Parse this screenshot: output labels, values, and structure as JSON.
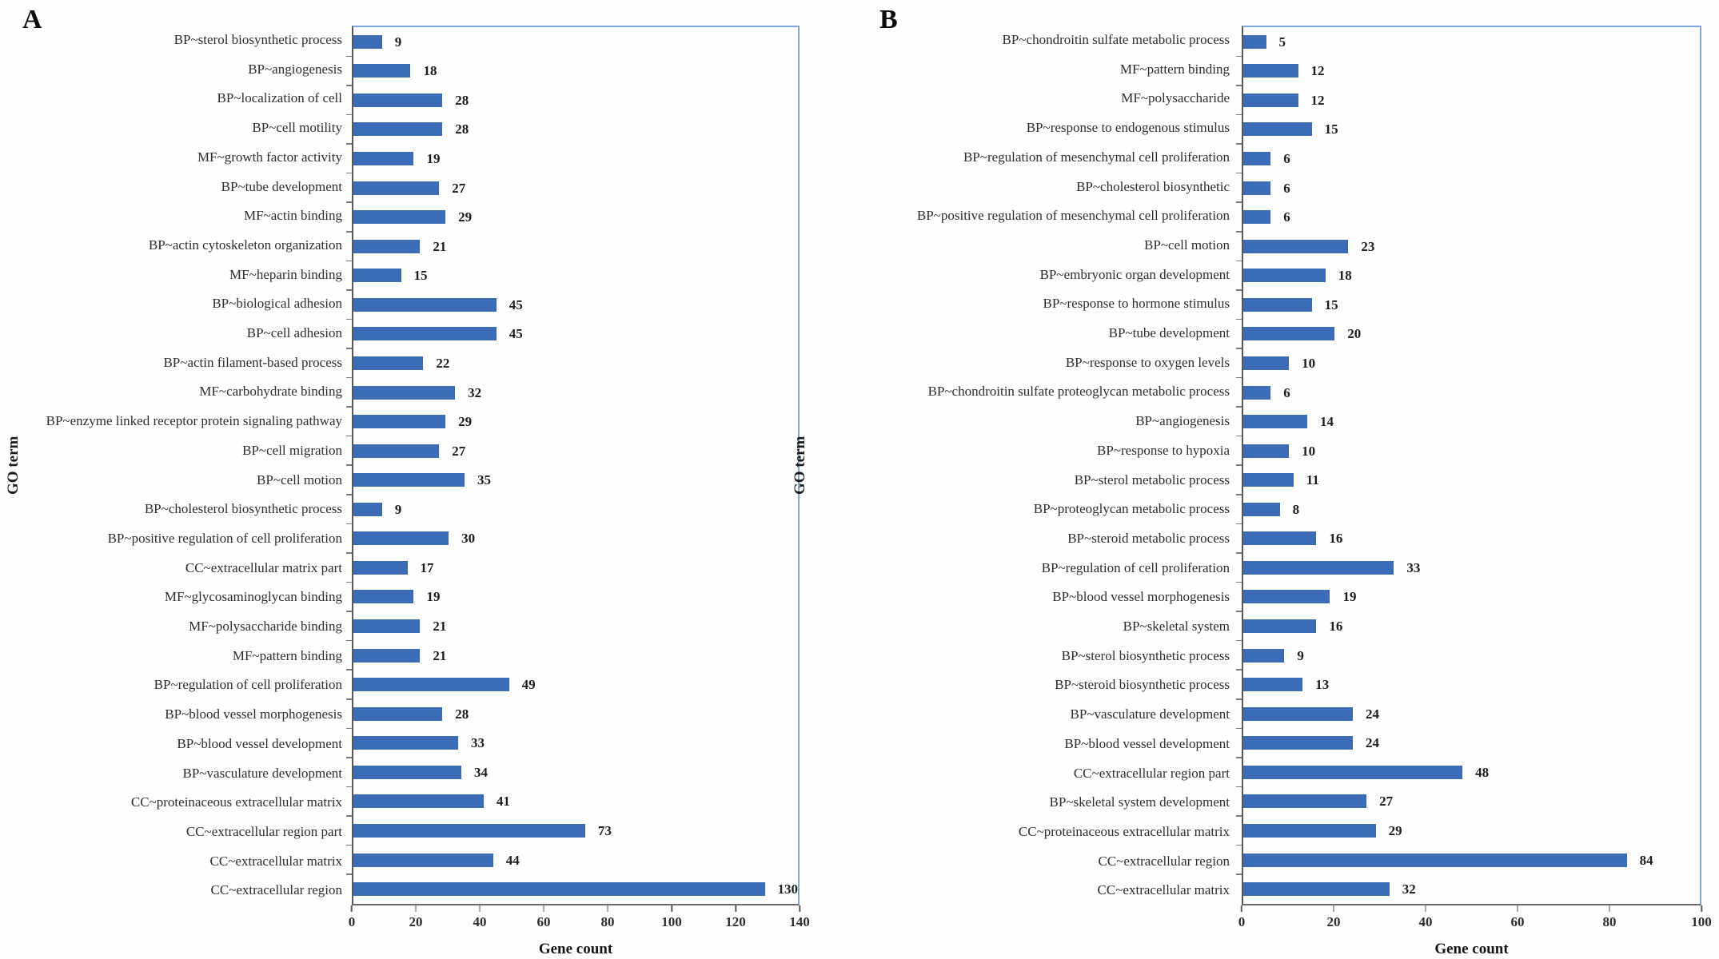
{
  "chart_data": [
    {
      "type": "bar",
      "orientation": "horizontal",
      "panel_label": "A",
      "title": "",
      "xlabel": "Gene count",
      "ylabel": "GO term",
      "xlim": [
        0,
        140
      ],
      "xticks": [
        0,
        20,
        40,
        60,
        80,
        100,
        120,
        140
      ],
      "grid": false,
      "legend": false,
      "bar_color": "#3c6cb5",
      "frame_color": "#7ea6d8",
      "axis_color": "#58595b",
      "value_labels_shown": true,
      "categories": [
        "BP~sterol biosynthetic process",
        "BP~angiogenesis",
        "BP~localization of cell",
        "BP~cell motility",
        "MF~growth factor activity",
        "BP~tube development",
        "MF~actin binding",
        "BP~actin cytoskeleton organization",
        "MF~heparin binding",
        "BP~biological adhesion",
        "BP~cell adhesion",
        "BP~actin filament-based process",
        "MF~carbohydrate binding",
        "BP~enzyme linked receptor protein signaling pathway",
        "BP~cell migration",
        "BP~cell motion",
        "BP~cholesterol biosynthetic process",
        "BP~positive regulation of cell proliferation",
        "CC~extracellular matrix part",
        "MF~glycosaminoglycan binding",
        "MF~polysaccharide binding",
        "MF~pattern binding",
        "BP~regulation of cell proliferation",
        "BP~blood vessel morphogenesis",
        "BP~blood vessel development",
        "BP~vasculature development",
        "CC~proteinaceous extracellular matrix",
        "CC~extracellular region part",
        "CC~extracellular matrix",
        "CC~extracellular region"
      ],
      "values": [
        9,
        18,
        28,
        28,
        19,
        27,
        29,
        21,
        15,
        45,
        45,
        22,
        32,
        29,
        27,
        35,
        9,
        30,
        17,
        19,
        21,
        21,
        49,
        28,
        33,
        34,
        41,
        73,
        44,
        130
      ]
    },
    {
      "type": "bar",
      "orientation": "horizontal",
      "panel_label": "B",
      "title": "",
      "xlabel": "Gene count",
      "ylabel": "GO term",
      "xlim": [
        0,
        100
      ],
      "xticks": [
        0,
        20,
        40,
        60,
        80,
        100
      ],
      "grid": false,
      "legend": false,
      "bar_color": "#3c6cb5",
      "frame_color": "#7ea6d8",
      "axis_color": "#58595b",
      "value_labels_shown": true,
      "categories": [
        "BP~chondroitin sulfate metabolic process",
        "MF~pattern binding",
        "MF~polysaccharide",
        "BP~response to endogenous stimulus",
        "BP~regulation of mesenchymal cell proliferation",
        "BP~cholesterol biosynthetic",
        "BP~positive regulation of mesenchymal cell proliferation",
        "BP~cell motion",
        "BP~embryonic organ development",
        "BP~response to hormone stimulus",
        "BP~tube development",
        "BP~response to oxygen levels",
        "BP~chondroitin sulfate proteoglycan metabolic process",
        "BP~angiogenesis",
        "BP~response to hypoxia",
        "BP~sterol metabolic process",
        "BP~proteoglycan metabolic process",
        "BP~steroid metabolic process",
        "BP~regulation of cell proliferation",
        "BP~blood vessel morphogenesis",
        "BP~skeletal system",
        "BP~sterol biosynthetic process",
        "BP~steroid biosynthetic process",
        "BP~vasculature development",
        "BP~blood vessel development",
        "CC~extracellular region part",
        "BP~skeletal system development",
        "CC~proteinaceous extracellular matrix",
        "CC~extracellular region",
        "CC~extracellular matrix"
      ],
      "values": [
        5,
        12,
        12,
        15,
        6,
        6,
        6,
        23,
        18,
        15,
        20,
        10,
        6,
        14,
        10,
        11,
        8,
        16,
        33,
        19,
        16,
        9,
        13,
        24,
        24,
        48,
        27,
        29,
        84,
        32
      ]
    }
  ]
}
